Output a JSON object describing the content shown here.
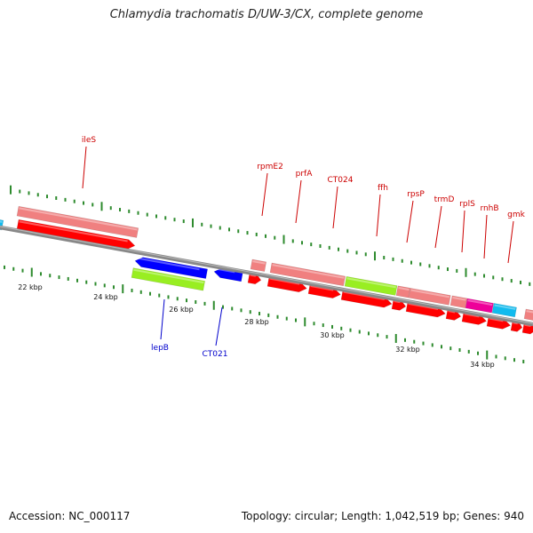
{
  "title": "Chlamydia trachomatis D/UW-3/CX, complete genome",
  "footer": {
    "accession": "Accession: NC_000117",
    "summary": "Topology: circular; Length: 1,042,519 bp; Genes: 940"
  },
  "colors": {
    "forward_label": "#cc0000",
    "reverse_label": "#0000cc",
    "tick": "#2e8b2e",
    "backbone": "#777777",
    "cds_red": "#ff0000",
    "cds_blue": "#0000ff",
    "rna_salmon": "#f08080",
    "green": "#99ee22",
    "magenta": "#ee0099",
    "cyan": "#11bbee"
  },
  "ruler": [
    {
      "label": "22 kbp"
    },
    {
      "label": "24 kbp"
    },
    {
      "label": "26 kbp"
    },
    {
      "label": "28 kbp"
    },
    {
      "label": "30 kbp"
    },
    {
      "label": "32 kbp"
    },
    {
      "label": "34 kbp"
    }
  ],
  "gene_labels": [
    {
      "name": "ileS",
      "strand": "forward"
    },
    {
      "name": "rpmE2",
      "strand": "forward"
    },
    {
      "name": "prfA",
      "strand": "forward"
    },
    {
      "name": "CT024",
      "strand": "forward"
    },
    {
      "name": "ffh",
      "strand": "forward"
    },
    {
      "name": "rpsP",
      "strand": "forward"
    },
    {
      "name": "trmD",
      "strand": "forward"
    },
    {
      "name": "rplS",
      "strand": "forward"
    },
    {
      "name": "rnhB",
      "strand": "forward"
    },
    {
      "name": "gmk",
      "strand": "forward"
    },
    {
      "name": "lepB",
      "strand": "reverse"
    },
    {
      "name": "CT021",
      "strand": "reverse"
    }
  ]
}
